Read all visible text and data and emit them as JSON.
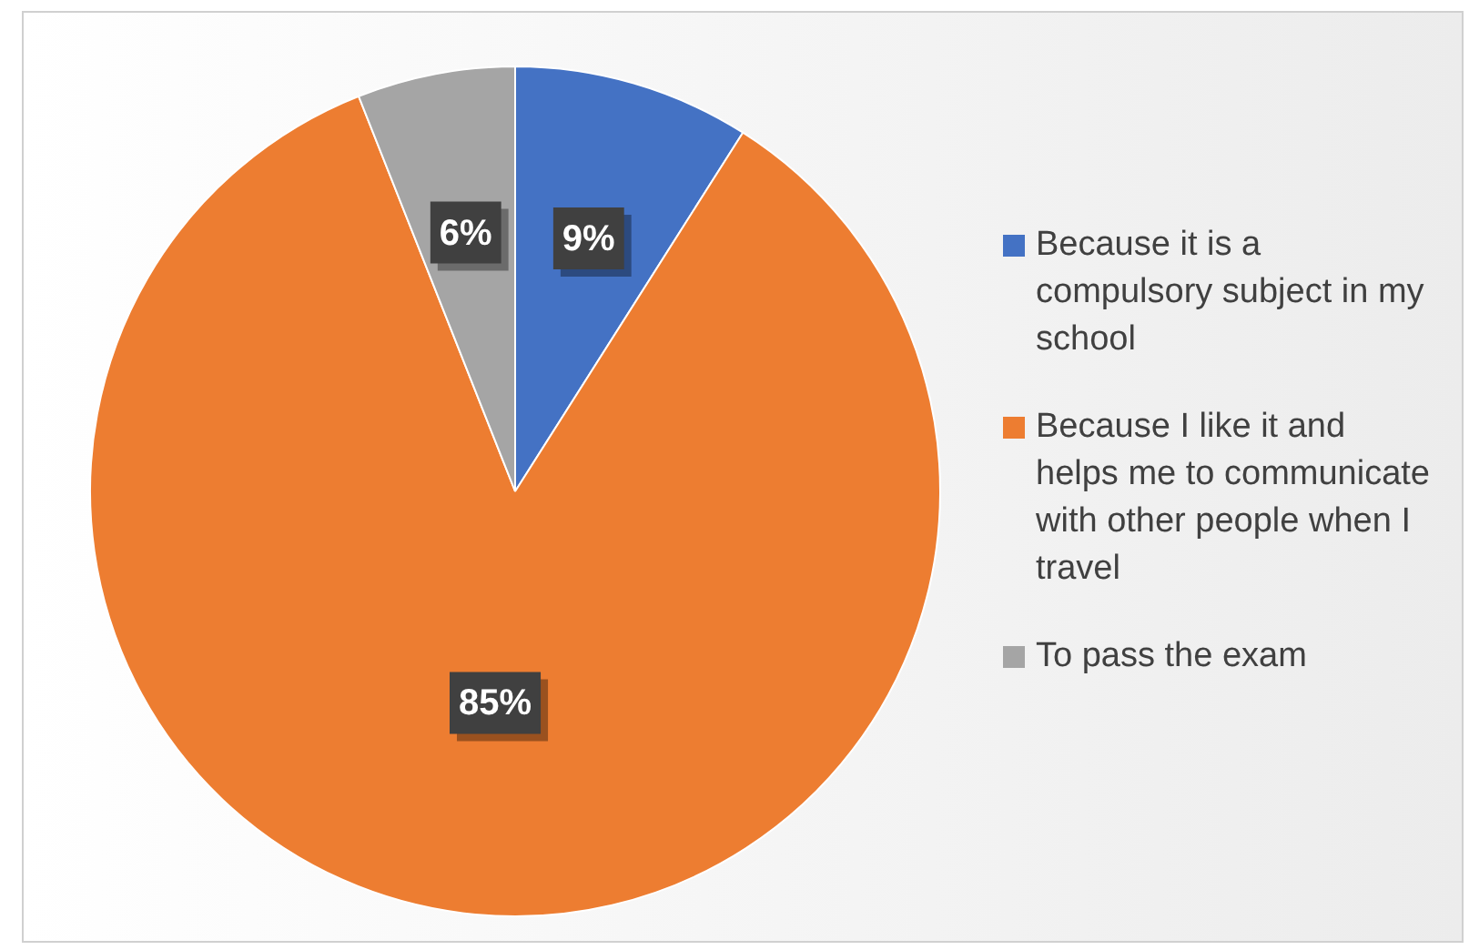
{
  "chart_data": {
    "type": "pie",
    "categories": [
      "Because it is a compulsory subject in my school",
      "Because I like it and helps me to communicate with other people when I travel",
      "To pass the exam"
    ],
    "values": [
      9,
      85,
      6
    ],
    "colors": [
      "#4472c4",
      "#ed7d31",
      "#a5a5a5"
    ],
    "value_labels": [
      "9%",
      "85%",
      "6%"
    ],
    "legend": "right"
  }
}
